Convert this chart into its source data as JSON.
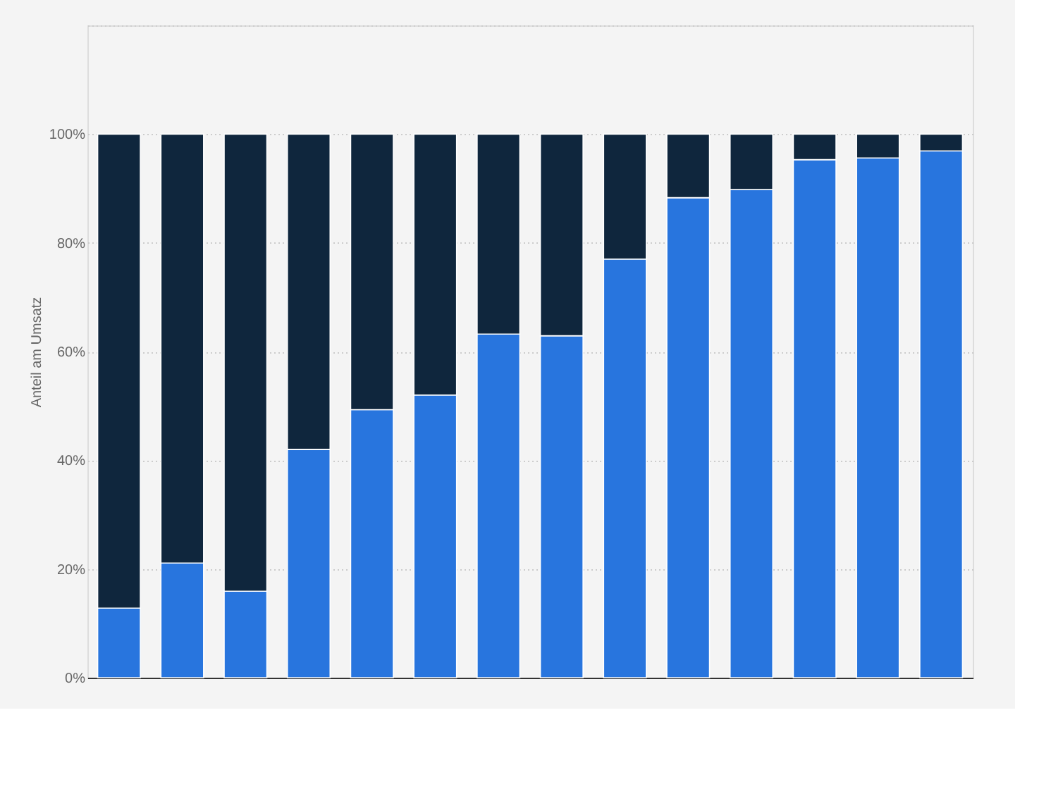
{
  "chart_data": {
    "type": "bar",
    "stacked": true,
    "ylabel": "Anteil am Umsatz",
    "categories": [
      null,
      null,
      null,
      null,
      null,
      null,
      null,
      null,
      null,
      null,
      null,
      null,
      null,
      null
    ],
    "series": [
      {
        "color": "#2875de",
        "values": [
          12.8,
          21.1,
          15.9,
          42.0,
          49.3,
          52.0,
          63.2,
          62.9,
          77.0,
          88.3,
          89.8,
          95.3,
          95.6,
          96.9
        ]
      },
      {
        "color": "#0f263d",
        "values": [
          87.2,
          78.9,
          84.1,
          58.0,
          50.7,
          48.0,
          36.8,
          37.1,
          23.0,
          11.7,
          10.2,
          4.7,
          4.4,
          3.1
        ]
      }
    ],
    "ylim": [
      0,
      120
    ],
    "yticks": [
      {
        "value": 0,
        "label": "0%"
      },
      {
        "value": 20,
        "label": "20%"
      },
      {
        "value": 40,
        "label": "40%"
      },
      {
        "value": 60,
        "label": "60%"
      },
      {
        "value": 80,
        "label": "80%"
      },
      {
        "value": 100,
        "label": "100%"
      },
      {
        "value": 120,
        "label": null
      }
    ],
    "grid": "y",
    "legend": false
  }
}
